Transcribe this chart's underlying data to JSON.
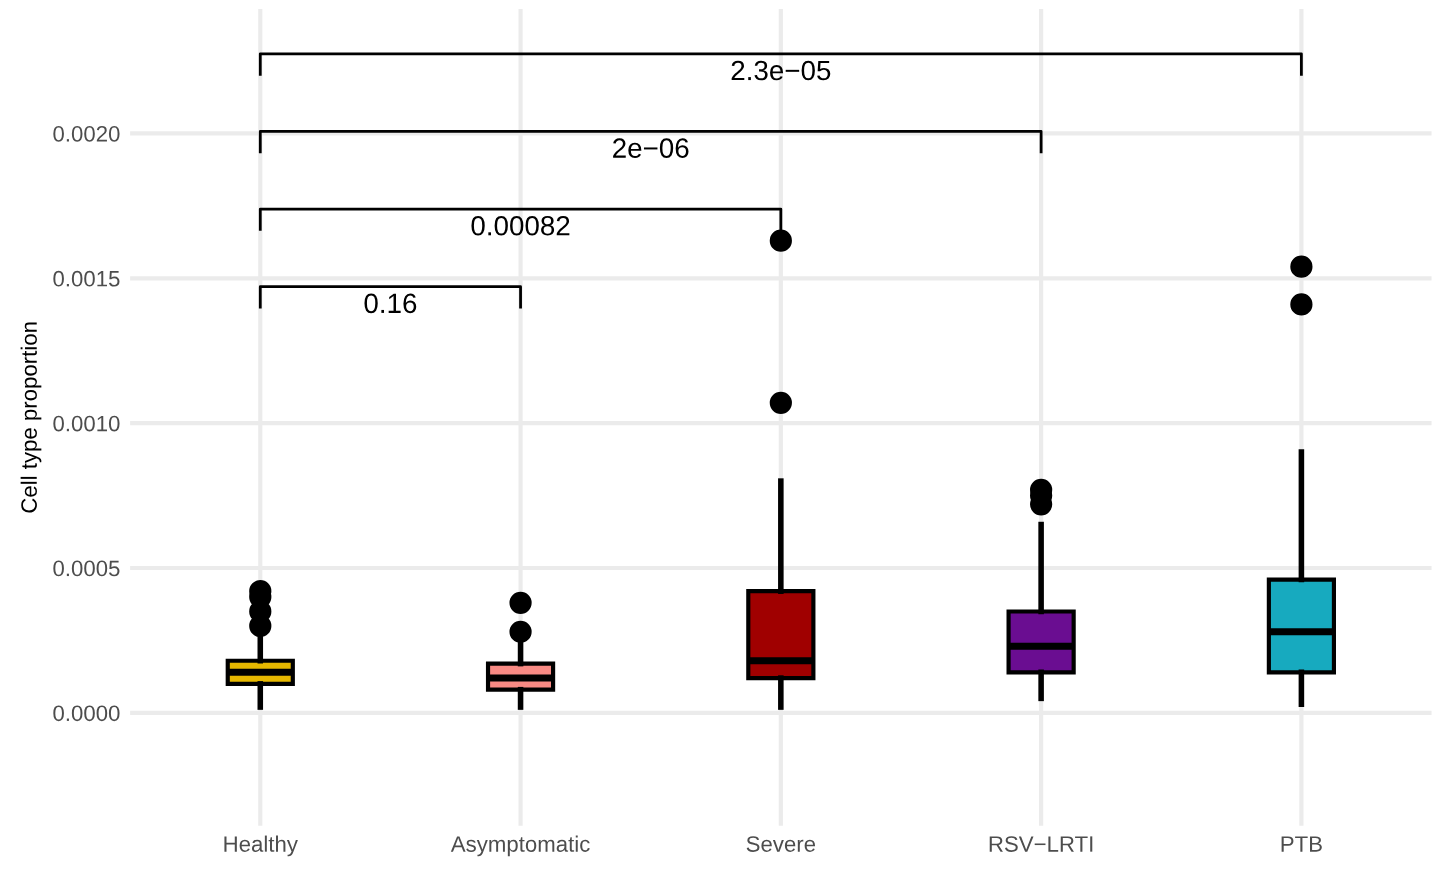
{
  "chart_data": {
    "type": "box",
    "ylabel": "Cell type proportion",
    "categories": [
      "Healthy",
      "Asymptomatic",
      "Severe",
      "RSV−LRTI",
      "PTB"
    ],
    "colors": [
      "#e6b800",
      "#f88a84",
      "#a00000",
      "#6a0d91",
      "#17aabf"
    ],
    "boxes": [
      {
        "low": 2e-05,
        "q1": 0.0001,
        "median": 0.00014,
        "q3": 0.00018,
        "high": 0.00028,
        "outliers": [
          0.0003,
          0.00035,
          0.0004,
          0.00042
        ]
      },
      {
        "low": 2e-05,
        "q1": 8e-05,
        "median": 0.00012,
        "q3": 0.00017,
        "high": 0.00026,
        "outliers": [
          0.00028,
          0.00038
        ]
      },
      {
        "low": 2e-05,
        "q1": 0.00012,
        "median": 0.00018,
        "q3": 0.00042,
        "high": 0.0008,
        "outliers": [
          0.00107,
          0.00163
        ]
      },
      {
        "low": 5e-05,
        "q1": 0.00014,
        "median": 0.00023,
        "q3": 0.00035,
        "high": 0.00065,
        "outliers": [
          0.00072,
          0.00075,
          0.00077
        ]
      },
      {
        "low": 3e-05,
        "q1": 0.00014,
        "median": 0.00028,
        "q3": 0.00046,
        "high": 0.0009,
        "outliers": [
          0.00141,
          0.00154
        ]
      }
    ],
    "annotations": [
      "0.16",
      "0.00082",
      "2e−06",
      "2.3e−05"
    ],
    "ylim": [
      -0.00039,
      0.00243
    ],
    "yticks": [
      {
        "value": 0,
        "label": "0.0000"
      },
      {
        "value": 0.0005,
        "label": "0.0005"
      },
      {
        "value": 0.001,
        "label": "0.0010"
      },
      {
        "value": 0.0015,
        "label": "0.0015"
      },
      {
        "value": 0.002,
        "label": "0.0020"
      }
    ],
    "grid": true
  }
}
